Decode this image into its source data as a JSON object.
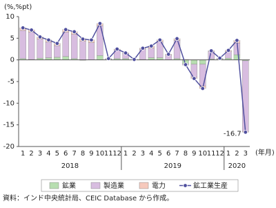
{
  "chart_data": {
    "type": "bar-line",
    "y_unit": "(%,%pt)",
    "x_unit": "(年月)",
    "note": "資料：インド中央統計局、CEIC Database から作成。",
    "categories": [
      "1",
      "2",
      "3",
      "4",
      "5",
      "6",
      "7",
      "8",
      "9",
      "10",
      "11",
      "12",
      "1",
      "2",
      "3",
      "4",
      "5",
      "6",
      "7",
      "8",
      "9",
      "10",
      "11",
      "12",
      "1",
      "2",
      "3"
    ],
    "years": [
      "2018",
      "2019",
      "2020"
    ],
    "series": [
      {
        "name": "鉱業",
        "kind": "bar",
        "color": "#b7deb0",
        "values": [
          0.3,
          0.1,
          0.4,
          0.5,
          0.6,
          0.8,
          0.3,
          -0.1,
          0.0,
          1.0,
          0.1,
          0.3,
          0.3,
          0.0,
          0.1,
          0.5,
          0.5,
          0.0,
          0.3,
          -0.9,
          -1.0,
          -1.0,
          0.2,
          0.2,
          0.4,
          1.2,
          -0.2
        ]
      },
      {
        "name": "製造業",
        "kind": "bar",
        "color": "#d8bde0",
        "values": [
          6.5,
          6.3,
          4.4,
          3.6,
          2.7,
          5.6,
          5.6,
          4.3,
          4.0,
          6.9,
          0.1,
          2.0,
          1.2,
          0.0,
          2.4,
          2.2,
          3.7,
          1.1,
          4.2,
          -0.3,
          -3.0,
          -5.0,
          1.8,
          0.2,
          1.5,
          2.7,
          -16.3
        ]
      },
      {
        "name": "電力",
        "kind": "bar",
        "color": "#f6c9bc",
        "values": [
          0.6,
          0.5,
          0.5,
          0.5,
          0.5,
          0.6,
          0.6,
          0.6,
          0.6,
          0.5,
          0.1,
          0.2,
          0.1,
          0.1,
          0.2,
          0.5,
          0.4,
          0.2,
          0.4,
          0.1,
          -0.3,
          -0.6,
          0.1,
          0.0,
          0.3,
          0.6,
          -0.2
        ]
      },
      {
        "name": "鉱工業生産",
        "kind": "line",
        "color": "#4f4f9e",
        "values": [
          7.4,
          6.9,
          5.3,
          4.6,
          3.8,
          7.0,
          6.5,
          4.8,
          4.6,
          8.4,
          0.3,
          2.5,
          1.6,
          0.1,
          2.7,
          3.2,
          4.6,
          1.3,
          4.9,
          -1.1,
          -4.3,
          -6.6,
          2.1,
          0.4,
          2.2,
          4.5,
          -16.7
        ],
        "value_labels": [
          null,
          null,
          null,
          null,
          null,
          null,
          null,
          null,
          null,
          null,
          null,
          null,
          null,
          null,
          null,
          null,
          null,
          null,
          null,
          null,
          null,
          null,
          null,
          null,
          null,
          null,
          "-16.7"
        ]
      }
    ],
    "ylim": [
      -20,
      10
    ],
    "yticks": [
      -20,
      -15,
      -10,
      -5,
      0,
      5,
      10
    ]
  }
}
